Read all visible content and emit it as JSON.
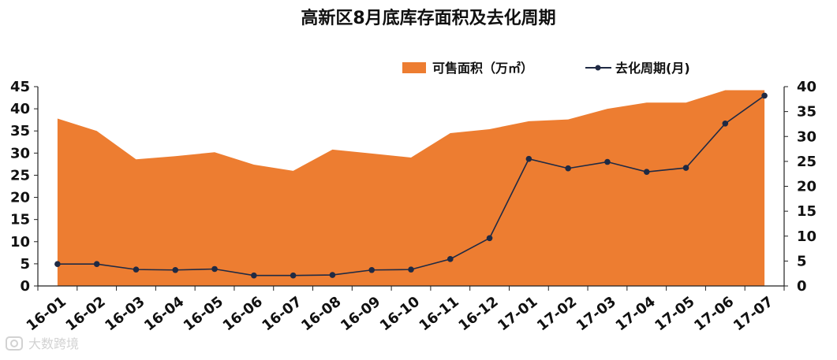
{
  "chart_data": {
    "type": "area+line",
    "title": "高新区8月底库存面积及去化周期",
    "categories": [
      "16-01",
      "16-02",
      "16-03",
      "16-04",
      "16-05",
      "16-06",
      "16-07",
      "16-08",
      "16-09",
      "16-10",
      "16-11",
      "16-12",
      "17-01",
      "17-02",
      "17-03",
      "17-04",
      "17-05",
      "17-06",
      "17-07"
    ],
    "series": [
      {
        "name": "可售面积（万㎡）",
        "kind": "area",
        "axis": "left",
        "color": "#ED7D31",
        "values": [
          37.8,
          35.0,
          28.6,
          29.3,
          30.2,
          27.4,
          26.0,
          30.8,
          29.9,
          29.0,
          34.5,
          35.4,
          37.2,
          37.6,
          40.0,
          41.4,
          41.4,
          44.2,
          44.2
        ]
      },
      {
        "name": "去化周期(月)",
        "kind": "line",
        "axis": "right",
        "color": "#1F2A44",
        "values": [
          4.4,
          4.4,
          3.3,
          3.2,
          3.4,
          2.1,
          2.1,
          2.2,
          3.2,
          3.3,
          5.4,
          9.6,
          25.5,
          23.6,
          24.9,
          22.9,
          23.7,
          32.6,
          38.2
        ]
      }
    ],
    "yleft": {
      "min": 0,
      "max": 45,
      "ticks": [
        "0",
        "5",
        "10",
        "15",
        "20",
        "25",
        "30",
        "35",
        "40",
        "45"
      ]
    },
    "yright": {
      "min": 0,
      "max": 40,
      "ticks": [
        "0",
        "5",
        "10",
        "15",
        "20",
        "25",
        "30",
        "35",
        "40"
      ]
    },
    "legend": {
      "placement": "top-right"
    },
    "grid": false
  },
  "watermark": {
    "text": "大数跨境",
    "icon": "camera-icon"
  }
}
